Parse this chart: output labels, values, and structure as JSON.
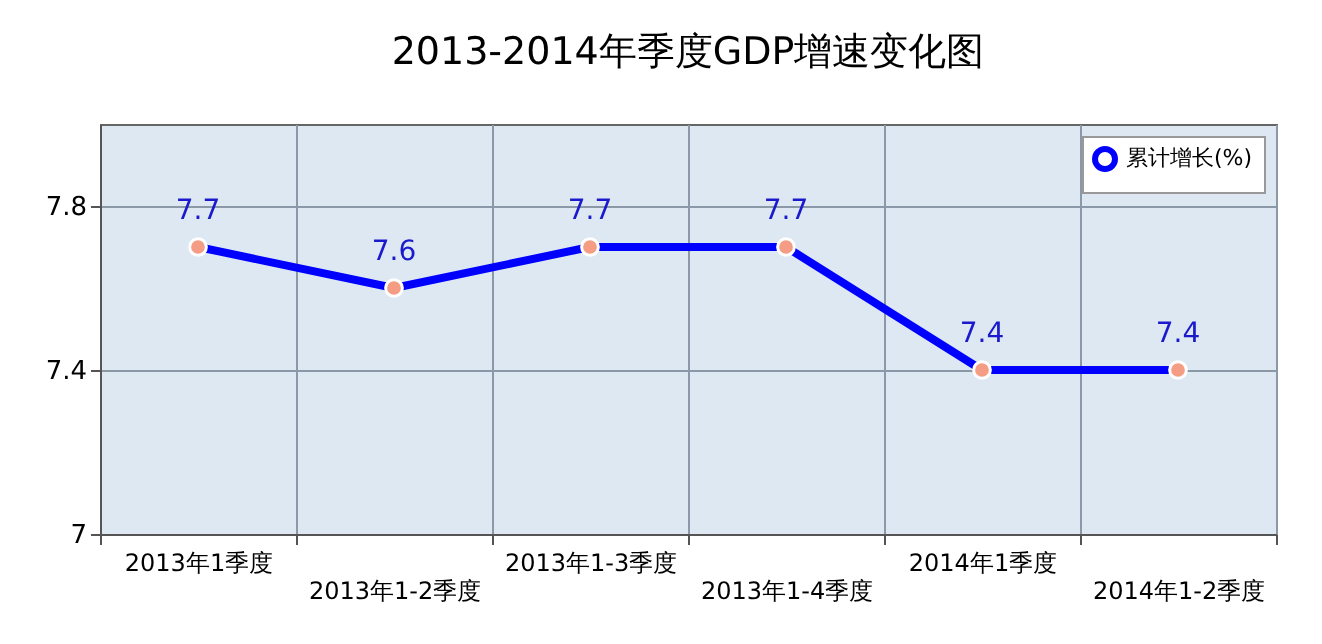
{
  "chart_data": {
    "type": "line",
    "title": "2013-2014年季度GDP增速变化图",
    "categories": [
      "2013年1季度",
      "2013年1-2季度",
      "2013年1-3季度",
      "2013年1-4季度",
      "2014年1季度",
      "2014年1-2季度"
    ],
    "series": [
      {
        "name": "累计增长(%)",
        "color": "#0000ff",
        "values": [
          7.7,
          7.6,
          7.7,
          7.7,
          7.4,
          7.4
        ]
      }
    ],
    "ylim": [
      7,
      8
    ],
    "yticks": [
      7,
      7.4,
      7.8
    ],
    "grid": true,
    "legend": "top right",
    "marker": "circle",
    "line_style": "solid",
    "data_labels": true
  }
}
